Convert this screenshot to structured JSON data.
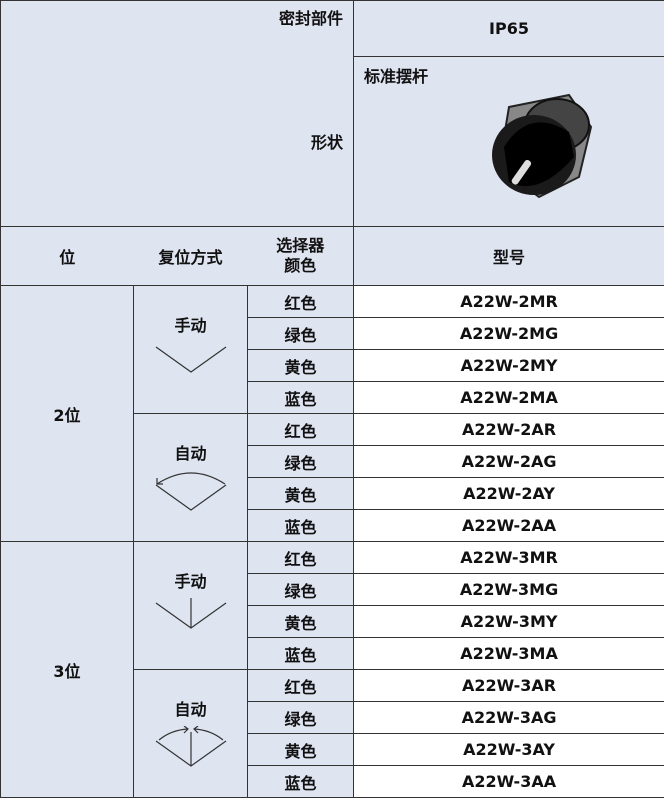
{
  "header": {
    "seal_label": "密封部件",
    "seal_value": "IP65",
    "shape_label": "形状",
    "shape_value": "标准摆杆",
    "col_position": "位",
    "col_reset": "复位方式",
    "col_color": "选择器颜色",
    "col_model": "型号"
  },
  "groups": [
    {
      "position": "2位",
      "resets": [
        {
          "label": "手动",
          "rows": [
            {
              "color": "红色",
              "model": "A22W-2MR"
            },
            {
              "color": "绿色",
              "model": "A22W-2MG"
            },
            {
              "color": "黄色",
              "model": "A22W-2MY"
            },
            {
              "color": "蓝色",
              "model": "A22W-2MA"
            }
          ]
        },
        {
          "label": "自动",
          "rows": [
            {
              "color": "红色",
              "model": "A22W-2AR"
            },
            {
              "color": "绿色",
              "model": "A22W-2AG"
            },
            {
              "color": "黄色",
              "model": "A22W-2AY"
            },
            {
              "color": "蓝色",
              "model": "A22W-2AA"
            }
          ]
        }
      ]
    },
    {
      "position": "3位",
      "resets": [
        {
          "label": "手动",
          "rows": [
            {
              "color": "红色",
              "model": "A22W-3MR"
            },
            {
              "color": "绿色",
              "model": "A22W-3MG"
            },
            {
              "color": "黄色",
              "model": "A22W-3MY"
            },
            {
              "color": "蓝色",
              "model": "A22W-3MA"
            }
          ]
        },
        {
          "label": "自动",
          "rows": [
            {
              "color": "红色",
              "model": "A22W-3AR"
            },
            {
              "color": "绿色",
              "model": "A22W-3AG"
            },
            {
              "color": "黄色",
              "model": "A22W-3AY"
            },
            {
              "color": "蓝色",
              "model": "A22W-3AA"
            }
          ]
        }
      ]
    }
  ]
}
